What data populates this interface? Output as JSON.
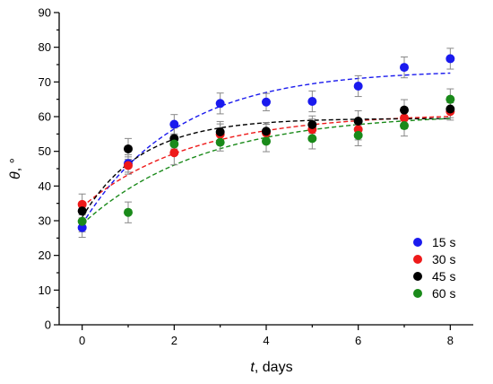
{
  "chart_data": {
    "type": "scatter",
    "title": "",
    "xlabel": {
      "italic": "t",
      "rest": ", days"
    },
    "ylabel": {
      "italic": "θ",
      "rest": ", °"
    },
    "xlim": [
      -0.5,
      8.5
    ],
    "ylim": [
      0,
      90
    ],
    "x_ticks": [
      0,
      2,
      4,
      6,
      8
    ],
    "y_ticks": [
      0,
      10,
      20,
      30,
      40,
      50,
      60,
      70,
      80,
      90
    ],
    "x_tick_labels": [
      "0",
      "2",
      "4",
      "6",
      "8"
    ],
    "y_tick_labels": [
      "0",
      "10",
      "20",
      "30",
      "40",
      "50",
      "60",
      "70",
      "80",
      "90"
    ],
    "grid": false,
    "legend_position": "bottom-right",
    "x": [
      0,
      1,
      2,
      3,
      4,
      5,
      6,
      7,
      8
    ],
    "series": [
      {
        "name": "15 s",
        "color": "#1a1aee",
        "y": [
          28,
          46.5,
          57.8,
          63.8,
          64.2,
          64.4,
          68.8,
          74.2,
          76.7
        ],
        "err": [
          2.8,
          2.5,
          2.8,
          3.0,
          2.5,
          3.0,
          3.0,
          3.0,
          3.0
        ],
        "fit": {
          "y0": 29,
          "ymax": 73.5,
          "k": 0.48
        }
      },
      {
        "name": "30 s",
        "color": "#ee1a1a",
        "y": [
          34.7,
          45.9,
          49.6,
          54.9,
          55.3,
          56.3,
          56.3,
          59.6,
          61.5
        ],
        "err": [
          3.0,
          2.5,
          3.5,
          3.0,
          2.5,
          3.0,
          3.0,
          3.0,
          2.5
        ],
        "fit": {
          "y0": 34,
          "ymax": 61,
          "k": 0.42
        }
      },
      {
        "name": "45 s",
        "color": "#000000",
        "y": [
          32.8,
          50.7,
          53.7,
          55.6,
          55.8,
          57.7,
          58.7,
          61.9,
          62.2
        ],
        "err": [
          2.5,
          3.0,
          3.0,
          3.0,
          2.5,
          2.5,
          3.0,
          3.0,
          2.5
        ],
        "fit": {
          "y0": 31,
          "ymax": 59.5,
          "k": 0.78
        }
      },
      {
        "name": "60 s",
        "color": "#1a8a1a",
        "y": [
          29.8,
          32.4,
          52.1,
          52.6,
          52.9,
          53.7,
          54.6,
          57.4,
          65
        ],
        "err": [
          3.0,
          3.0,
          2.5,
          2.5,
          3.0,
          3.0,
          3.0,
          3.0,
          3.0
        ],
        "fit": {
          "y0": 29,
          "ymax": 61,
          "k": 0.38
        }
      }
    ]
  }
}
